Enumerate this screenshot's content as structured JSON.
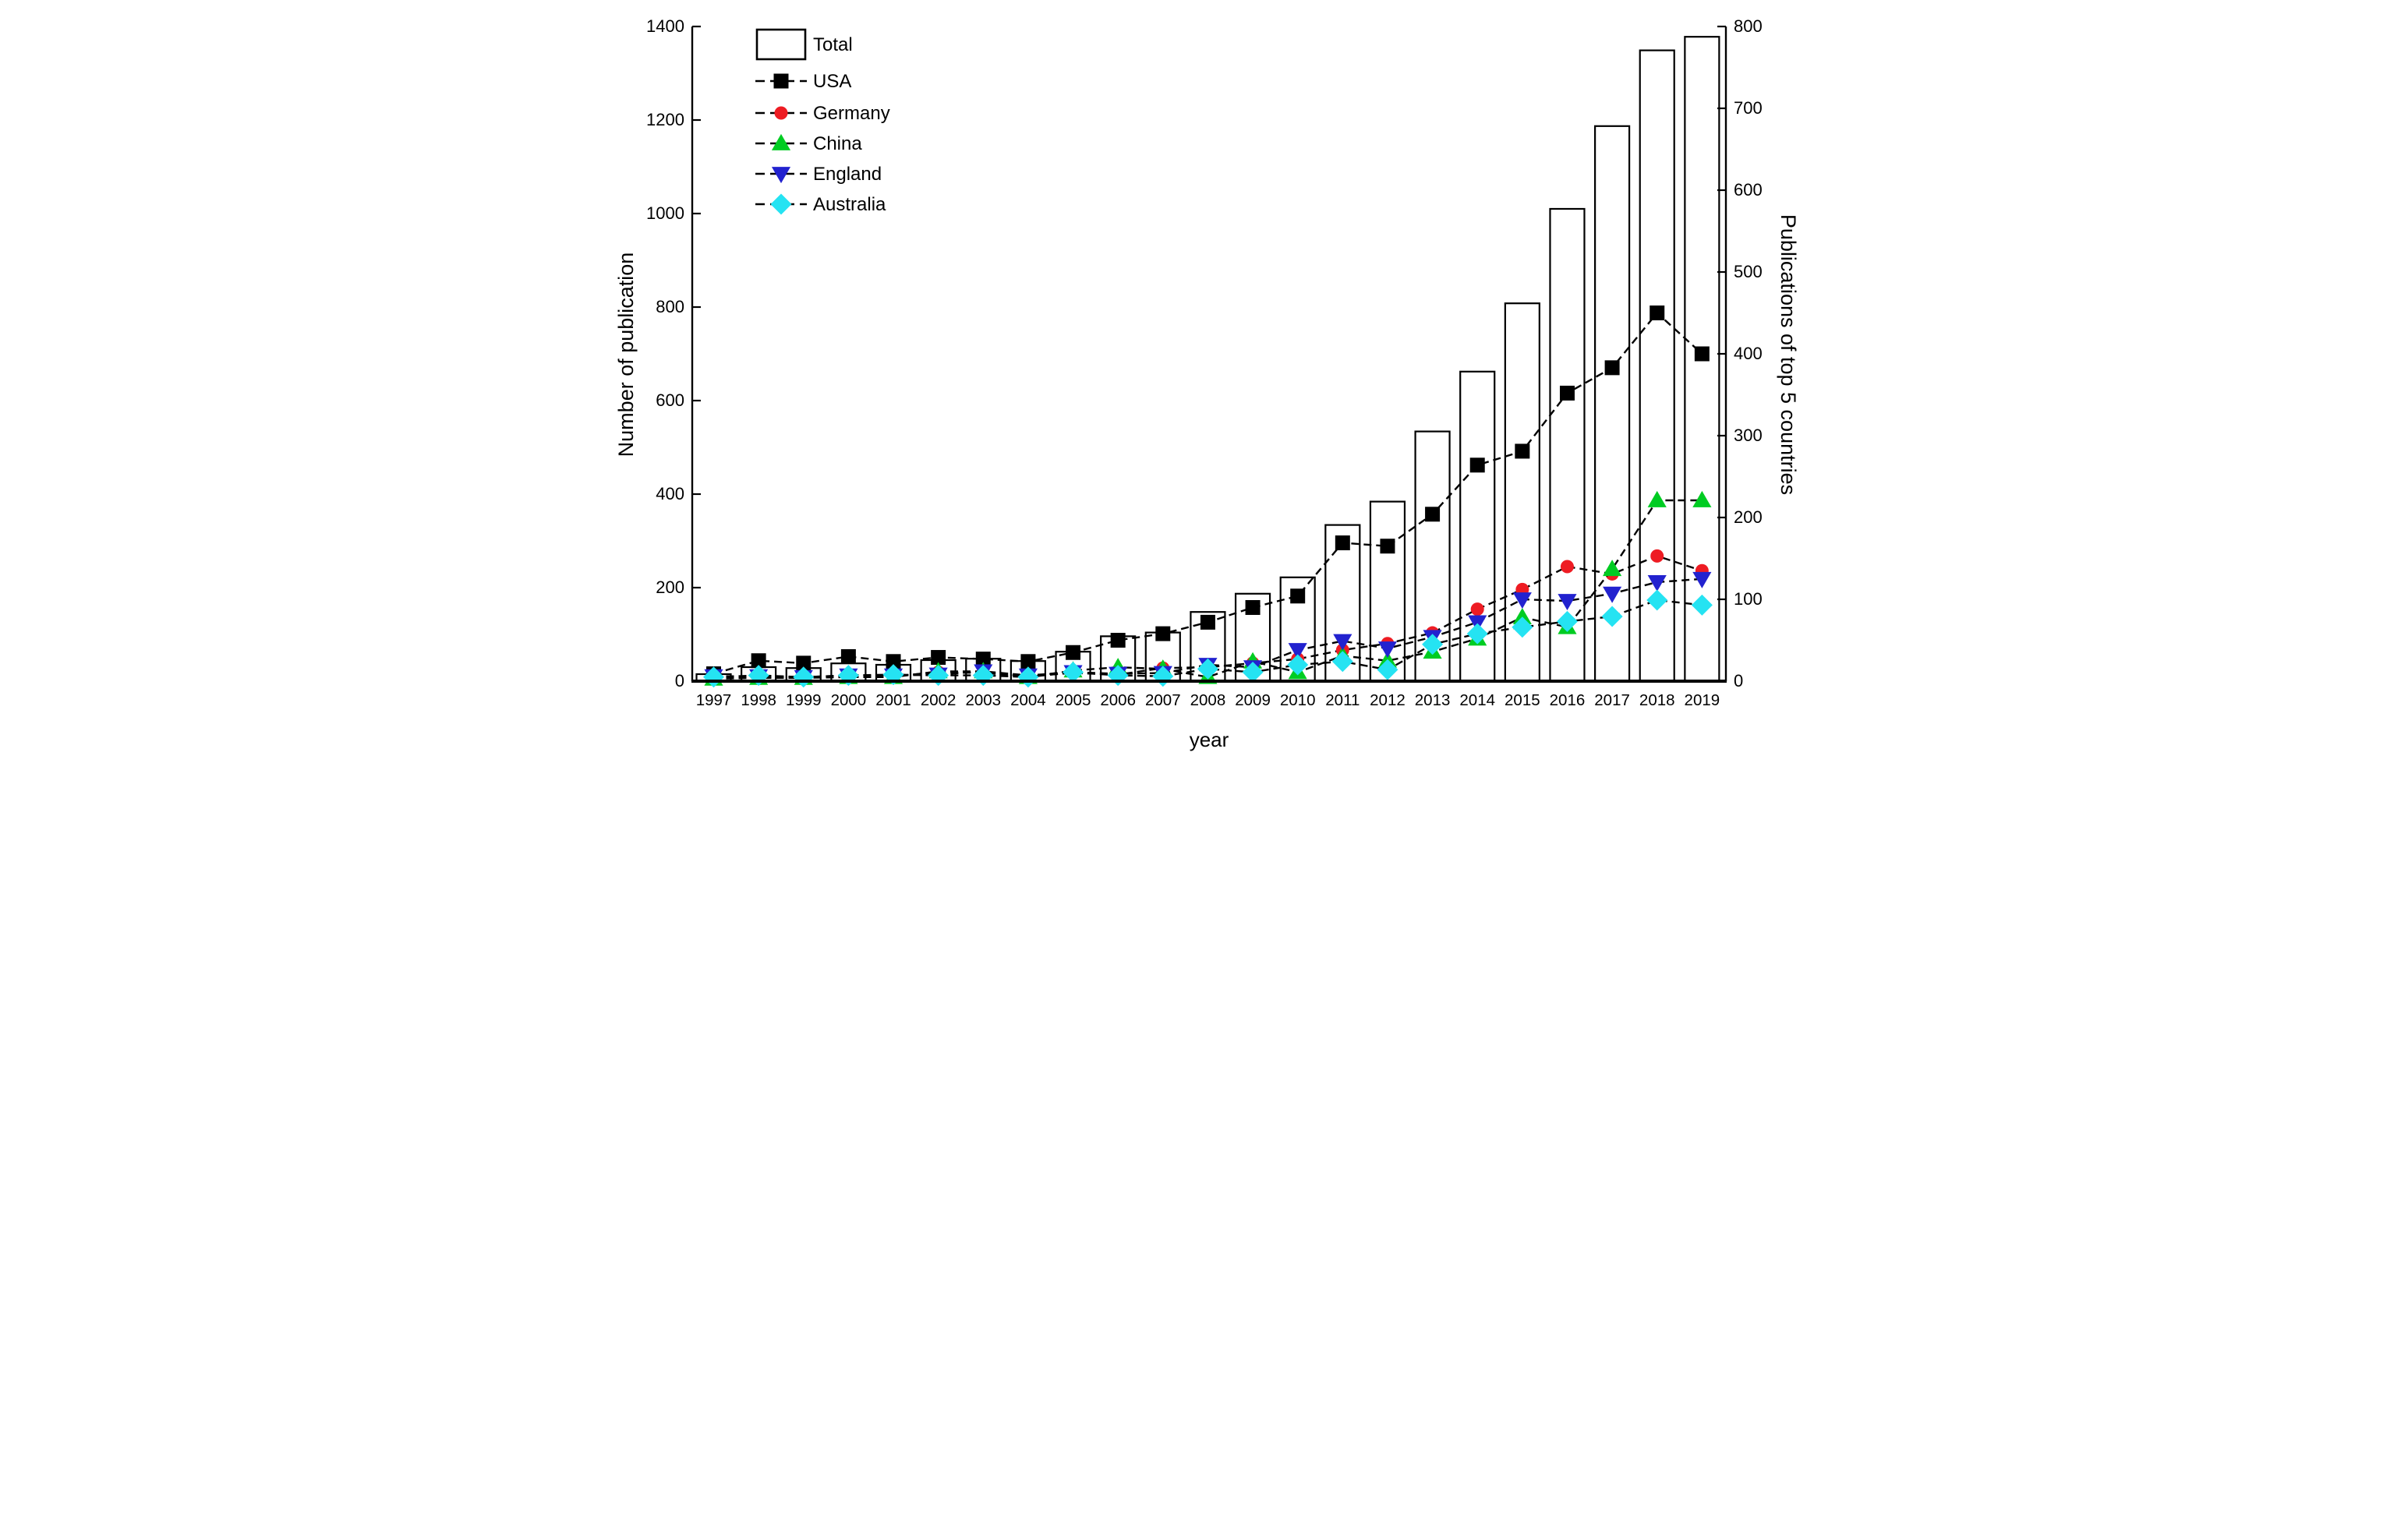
{
  "figure": {
    "background": "#ffffff",
    "x_axis_title": "year",
    "left_axis_title": "Number of publication",
    "right_axis_title": "Publications of top 5 countries"
  },
  "legend": {
    "position": "top-left",
    "items": [
      {
        "label": "Total",
        "marker": "open-bar",
        "color": "#000000"
      },
      {
        "label": "USA",
        "marker": "square",
        "color": "#000000"
      },
      {
        "label": "Germany",
        "marker": "circle",
        "color": "#ee1c23"
      },
      {
        "label": "China",
        "marker": "triangle-up",
        "color": "#00cc22"
      },
      {
        "label": "England",
        "marker": "triangle-down",
        "color": "#2222cf"
      },
      {
        "label": "Australia",
        "marker": "diamond",
        "color": "#25e3f2"
      }
    ]
  },
  "chart_data": {
    "type": "bar+line",
    "title": "",
    "xlabel": "year",
    "ylabel_left": "Number of publication",
    "ylabel_right": "Publications of top 5 countries",
    "categories": [
      1997,
      1998,
      1999,
      2000,
      2001,
      2002,
      2003,
      2004,
      2005,
      2006,
      2007,
      2008,
      2009,
      2010,
      2011,
      2012,
      2013,
      2014,
      2015,
      2016,
      2017,
      2018,
      2019
    ],
    "left_axis": {
      "range": [
        0,
        1400
      ],
      "ticks": [
        0,
        200,
        400,
        600,
        800,
        1000,
        1200,
        1400
      ]
    },
    "right_axis": {
      "range": [
        0,
        800
      ],
      "ticks": [
        0,
        100,
        200,
        300,
        400,
        500,
        600,
        700,
        800
      ]
    },
    "grid": false,
    "bars": {
      "name": "Total",
      "axis": "left",
      "fill": "#ffffff",
      "stroke": "#000000",
      "values": [
        15,
        30,
        28,
        38,
        35,
        45,
        48,
        43,
        63,
        96,
        104,
        148,
        187,
        222,
        334,
        384,
        534,
        662,
        808,
        1010,
        1187,
        1349,
        1378
      ]
    },
    "series": [
      {
        "name": "USA",
        "axis": "right",
        "marker": "square",
        "color": "#000000",
        "values": [
          9,
          25,
          22,
          30,
          24,
          29,
          27,
          24,
          35,
          50,
          58,
          72,
          90,
          104,
          169,
          165,
          204,
          264,
          281,
          352,
          383,
          450,
          400
        ]
      },
      {
        "name": "Germany",
        "axis": "right",
        "marker": "circle",
        "color": "#ee1c23",
        "values": [
          4,
          5,
          5,
          6,
          6,
          11,
          10,
          6,
          10,
          8,
          16,
          17,
          22,
          27,
          38,
          46,
          59,
          88,
          112,
          140,
          131,
          153,
          135
        ]
      },
      {
        "name": "China",
        "axis": "right",
        "marker": "triangle-up",
        "color": "#00cc22",
        "values": [
          3,
          4,
          4,
          5,
          5,
          12,
          12,
          5,
          13,
          17,
          15,
          5,
          24,
          11,
          31,
          25,
          36,
          52,
          78,
          66,
          137,
          221,
          221
        ]
      },
      {
        "name": "England",
        "axis": "right",
        "marker": "triangle-down",
        "color": "#2222cf",
        "values": [
          6,
          6,
          5,
          7,
          7,
          8,
          12,
          7,
          11,
          9,
          10,
          20,
          17,
          38,
          49,
          40,
          54,
          72,
          100,
          98,
          107,
          121,
          125
        ]
      },
      {
        "name": "Australia",
        "axis": "right",
        "marker": "diamond",
        "color": "#25e3f2",
        "values": [
          5,
          7,
          5,
          7,
          8,
          7,
          7,
          5,
          11,
          7,
          6,
          15,
          11,
          20,
          24,
          14,
          45,
          58,
          66,
          73,
          79,
          99,
          93
        ]
      }
    ],
    "line_style": {
      "stroke": "#000000",
      "dash": "10 6",
      "width": 2.4
    }
  }
}
